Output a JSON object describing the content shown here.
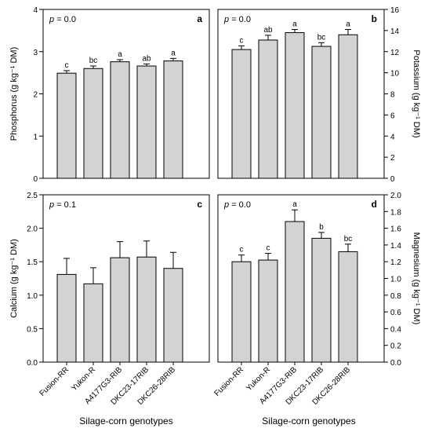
{
  "colors": {
    "bar_fill": "#d3d3d3",
    "bar_stroke": "#000000",
    "axis": "#000000",
    "background": "#ffffff"
  },
  "categories": [
    "Fusion-RR",
    "Yukon-R",
    "A4177G3-RIB",
    "DKC23-17RIB",
    "DKC26-28RIB"
  ],
  "xlabel": "Silage-corn genotypes",
  "chart_data": [
    {
      "type": "bar",
      "panel_label": "a",
      "p_label": "= 0.0",
      "p_symbol": "p",
      "ylabel": "Phosphorus (g kg⁻¹ DM)",
      "y_axis_side": "left",
      "ylim": [
        0,
        4
      ],
      "yticks": [
        "0",
        "1",
        "2",
        "3",
        "4"
      ],
      "categories": [
        "Fusion-RR",
        "Yukon-R",
        "A4177G3-RIB",
        "DKC23-17RIB",
        "DKC26-28RIB"
      ],
      "values": [
        2.49,
        2.6,
        2.76,
        2.66,
        2.78
      ],
      "errors": [
        0.06,
        0.06,
        0.05,
        0.05,
        0.06
      ],
      "letters": [
        "c",
        "bc",
        "a",
        "ab",
        "a"
      ],
      "grid": false
    },
    {
      "type": "bar",
      "panel_label": "b",
      "p_label": "= 0.0",
      "p_symbol": "p",
      "ylabel": "Potassium (g kg⁻¹ DM)",
      "y_axis_side": "right",
      "ylim": [
        0,
        16
      ],
      "yticks": [
        "0",
        "2",
        "4",
        "6",
        "8",
        "10",
        "12",
        "14",
        "16"
      ],
      "categories": [
        "Fusion-RR",
        "Yukon-R",
        "A4177G3-RIB",
        "DKC23-17RIB",
        "DKC26-28RIB"
      ],
      "values": [
        12.2,
        13.1,
        13.8,
        12.5,
        13.6
      ],
      "errors": [
        0.35,
        0.45,
        0.3,
        0.35,
        0.5
      ],
      "letters": [
        "c",
        "ab",
        "a",
        "bc",
        "a"
      ],
      "grid": false
    },
    {
      "type": "bar",
      "panel_label": "c",
      "p_label": "= 0.1",
      "p_symbol": "p",
      "ylabel": "Calcium (g kg⁻¹ DM)",
      "y_axis_side": "left",
      "ylim": [
        0,
        2.5
      ],
      "yticks": [
        "0.0",
        "0.5",
        "1.0",
        "1.5",
        "2.0",
        "2.5"
      ],
      "categories": [
        "Fusion-RR",
        "Yukon-R",
        "A4177G3-RIB",
        "DKC23-17RIB",
        "DKC26-28RIB"
      ],
      "values": [
        1.31,
        1.17,
        1.56,
        1.57,
        1.4
      ],
      "errors": [
        0.24,
        0.24,
        0.24,
        0.24,
        0.24
      ],
      "letters": [
        "",
        "",
        "",
        "",
        ""
      ],
      "grid": false
    },
    {
      "type": "bar",
      "panel_label": "d",
      "p_label": "= 0.0",
      "p_symbol": "p",
      "ylabel": "Magnesium (g kg⁻¹ DM)",
      "y_axis_side": "right",
      "ylim": [
        0,
        2.0
      ],
      "yticks": [
        "0.0",
        "0.2",
        "0.4",
        "0.6",
        "0.8",
        "1.0",
        "1.2",
        "1.4",
        "1.6",
        "1.8",
        "2.0"
      ],
      "categories": [
        "Fusion-RR",
        "Yukon-R",
        "A4177G3-RIB",
        "DKC23-17RIB",
        "DKC26-28RIB"
      ],
      "values": [
        1.2,
        1.22,
        1.68,
        1.48,
        1.32
      ],
      "errors": [
        0.08,
        0.08,
        0.14,
        0.07,
        0.09
      ],
      "letters": [
        "c",
        "c",
        "a",
        "b",
        "bc"
      ],
      "grid": false
    }
  ]
}
